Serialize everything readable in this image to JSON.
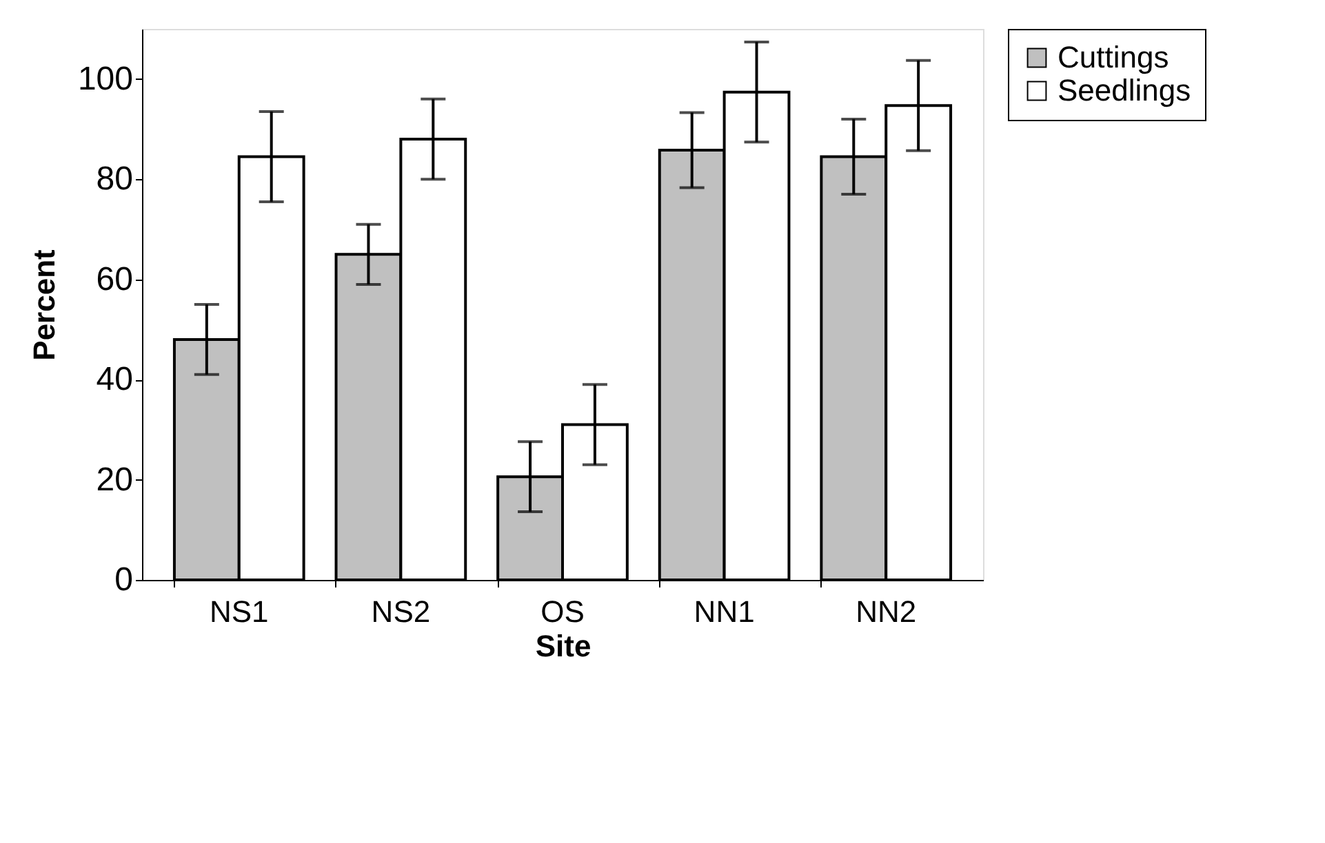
{
  "chart_data": {
    "type": "bar",
    "xlabel": "Site",
    "ylabel": "Percent",
    "categories": [
      "NS1",
      "NS2",
      "OS",
      "NN1",
      "NN2"
    ],
    "series": [
      {
        "name": "Cuttings",
        "color": "#c0c0c0",
        "values": [
          48,
          65,
          20.6,
          85.8,
          84.5
        ],
        "errors": [
          7,
          6,
          7,
          7.5,
          7.5
        ]
      },
      {
        "name": "Seedlings",
        "color": "#ffffff",
        "values": [
          84.5,
          88,
          31,
          97.4,
          94.7
        ],
        "errors": [
          9,
          8,
          8,
          10,
          9
        ]
      }
    ],
    "ylim": [
      0,
      110
    ],
    "yticks": [
      0,
      20,
      40,
      60,
      80,
      100
    ],
    "grid": false,
    "legend": "right"
  }
}
